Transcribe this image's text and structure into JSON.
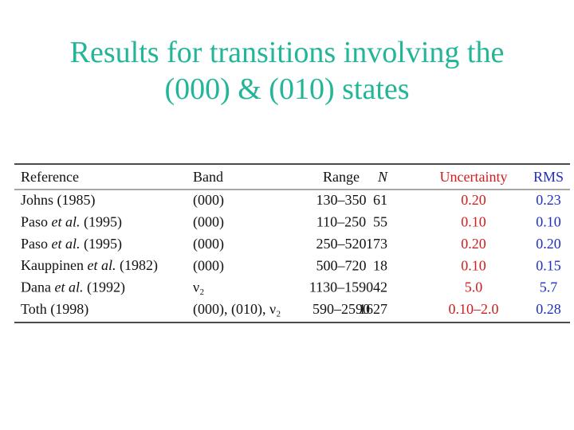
{
  "title": [
    "Results for transitions involving the",
    "(000) & (010) states"
  ],
  "table": {
    "header": [
      "Reference",
      "Band",
      "Range",
      "N",
      "Uncertainty",
      "RMS"
    ],
    "rows": [
      [
        [
          "Johns (1985)"
        ],
        "(000)",
        "130–350",
        "61",
        "0.20",
        "0.23"
      ],
      [
        [
          "Paso ",
          "et al.",
          " (1995)"
        ],
        "(000)",
        "110–250",
        "55",
        "0.10",
        "0.10"
      ],
      [
        [
          "Paso ",
          "et al.",
          " (1995)"
        ],
        "(000)",
        "250–520",
        "173",
        "0.20",
        "0.20"
      ],
      [
        [
          "Kauppinen ",
          "et al.",
          " (1982)"
        ],
        "(000)",
        "500–720",
        "18",
        "0.10",
        "0.15"
      ],
      [
        [
          "Dana ",
          "et al.",
          " (1992)"
        ],
        "ν₂",
        "1130–1590",
        "42",
        "5.0",
        "5.7"
      ],
      [
        [
          "Toth (1998)"
        ],
        "(000), (010), ν₂",
        "590–2590",
        "1627",
        "0.10–2.0",
        "0.28"
      ]
    ]
  }
}
